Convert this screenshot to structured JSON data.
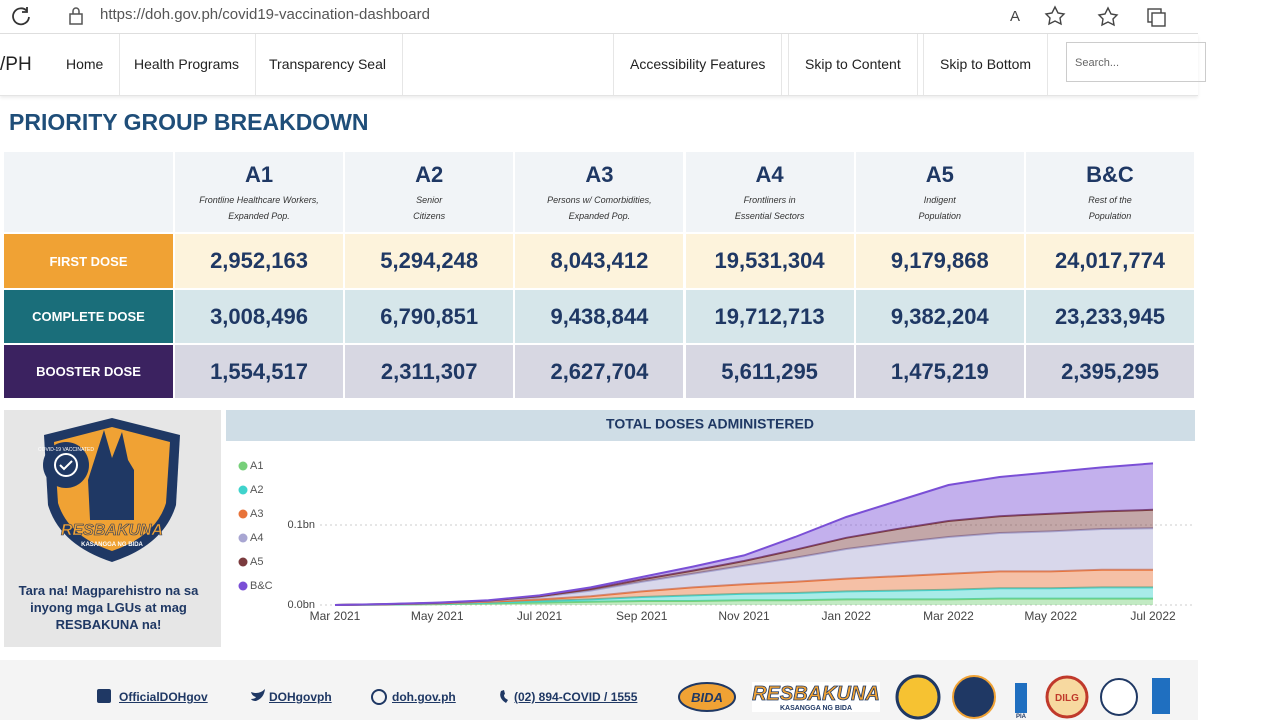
{
  "browser": {
    "url": "https://doh.gov.ph/covid19-vaccination-dashboard"
  },
  "nav": {
    "brand": "/PH",
    "items": [
      "Home",
      "Health Programs",
      "Transparency Seal"
    ],
    "right_items": [
      "Accessibility Features",
      "Skip to Content",
      "Skip to Bottom"
    ],
    "search_placeholder": "Search..."
  },
  "title": "PRIORITY GROUP BREAKDOWN",
  "table": {
    "columns": [
      {
        "code": "A1",
        "desc": [
          "Frontline Healthcare Workers,",
          "Expanded Pop."
        ]
      },
      {
        "code": "A2",
        "desc": [
          "Senior",
          "Citizens"
        ]
      },
      {
        "code": "A3",
        "desc": [
          "Persons w/ Comorbidities,",
          "Expanded Pop."
        ]
      },
      {
        "code": "A4",
        "desc": [
          "Frontliners in",
          "Essential Sectors"
        ]
      },
      {
        "code": "A5",
        "desc": [
          "Indigent",
          "Population"
        ]
      },
      {
        "code": "B&C",
        "desc": [
          "Rest of the",
          "Population"
        ]
      }
    ],
    "rows": [
      {
        "label": "FIRST DOSE",
        "values": [
          "2,952,163",
          "5,294,248",
          "8,043,412",
          "19,531,304",
          "9,179,868",
          "24,017,774"
        ]
      },
      {
        "label": "COMPLETE DOSE",
        "values": [
          "3,008,496",
          "6,790,851",
          "9,438,844",
          "19,712,713",
          "9,382,204",
          "23,233,945"
        ]
      },
      {
        "label": "BOOSTER DOSE",
        "values": [
          "1,554,517",
          "2,311,307",
          "2,627,704",
          "5,611,295",
          "1,475,219",
          "2,395,295"
        ]
      }
    ]
  },
  "promo": {
    "badge_ring": "COVID-19 VACCINATED",
    "badge_name": "RESBAKUNA",
    "badge_tag": "KASANGGA NG BIDA",
    "text": "Tara na! Magparehistro na sa inyong mga LGUs at mag RESBAKUNA na!"
  },
  "chart_data": {
    "type": "stacked_area",
    "title": "TOTAL DOSES ADMINISTERED",
    "categories": [
      "Mar 2021",
      null,
      "May 2021",
      null,
      "Jul 2021",
      null,
      "Sep 2021",
      null,
      "Nov 2021",
      null,
      "Jan 2022",
      null,
      "Mar 2022",
      null,
      "May 2022",
      null,
      "Jul 2022"
    ],
    "ylim": [
      0,
      0.19
    ],
    "yticks": [
      {
        "value": 0,
        "label": "0.0bn"
      },
      {
        "value": 0.1,
        "label": "0.1bn"
      }
    ],
    "grid": true,
    "series": [
      {
        "name": "A1",
        "color": "#77d07a",
        "values": [
          0,
          0.0005,
          0.001,
          0.002,
          0.003,
          0.004,
          0.005,
          0.005,
          0.006,
          0.006,
          0.007,
          0.007,
          0.007,
          0.008,
          0.008,
          0.008,
          0.008
        ]
      },
      {
        "name": "A2",
        "color": "#3fd3cc",
        "values": [
          0,
          0.0002,
          0.0005,
          0.001,
          0.002,
          0.003,
          0.005,
          0.007,
          0.008,
          0.009,
          0.01,
          0.011,
          0.012,
          0.013,
          0.013,
          0.014,
          0.014
        ]
      },
      {
        "name": "A3",
        "color": "#e8733a",
        "values": [
          0,
          0.0002,
          0.0005,
          0.001,
          0.002,
          0.004,
          0.007,
          0.01,
          0.012,
          0.014,
          0.016,
          0.018,
          0.02,
          0.021,
          0.021,
          0.022,
          0.022
        ]
      },
      {
        "name": "A4",
        "color": "#a8a6d2",
        "values": [
          0,
          0.0001,
          0.0005,
          0.001,
          0.003,
          0.007,
          0.012,
          0.017,
          0.023,
          0.03,
          0.037,
          0.042,
          0.046,
          0.048,
          0.05,
          0.051,
          0.052
        ]
      },
      {
        "name": "A5",
        "color": "#7b3b3e",
        "values": [
          0,
          0,
          0.0002,
          0.0005,
          0.001,
          0.002,
          0.003,
          0.004,
          0.006,
          0.01,
          0.014,
          0.017,
          0.02,
          0.021,
          0.022,
          0.022,
          0.023
        ]
      },
      {
        "name": "B&C",
        "color": "#7a4fd6",
        "values": [
          0,
          0.0002,
          0.0003,
          0.0005,
          0.001,
          0.002,
          0.003,
          0.005,
          0.007,
          0.016,
          0.026,
          0.035,
          0.045,
          0.049,
          0.052,
          0.055,
          0.058
        ]
      }
    ]
  },
  "footer": {
    "links": [
      "OfficialDOHgov",
      "DOHgovph",
      "doh.gov.ph",
      "(02) 894-COVID / 1555"
    ],
    "logos": [
      "BIDA",
      "RESBAKUNA",
      "KASANGGA NG BIDA",
      "PIA",
      "DILG"
    ]
  }
}
